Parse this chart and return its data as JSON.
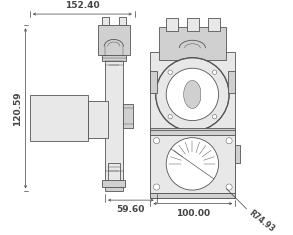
{
  "bg_color": "#ffffff",
  "line_color": "#666666",
  "dim_color": "#444444",
  "dim_top_label": "152.40",
  "dim_height_label": "120.59",
  "dim_bottom_left_label": "59.60",
  "dim_bottom_right_label": "100.00",
  "dim_radius_label": "R74.93",
  "font_size_dims": 6.5,
  "font_size_radius": 5.5,
  "fill_light": "#e8e8e8",
  "fill_mid": "#d0d0d0",
  "fill_dark": "#b8b8b8",
  "fill_white": "#ffffff",
  "edge_color": "#555555",
  "lw_main": 0.6,
  "lw_dim": 0.5,
  "lw_thin": 0.35
}
